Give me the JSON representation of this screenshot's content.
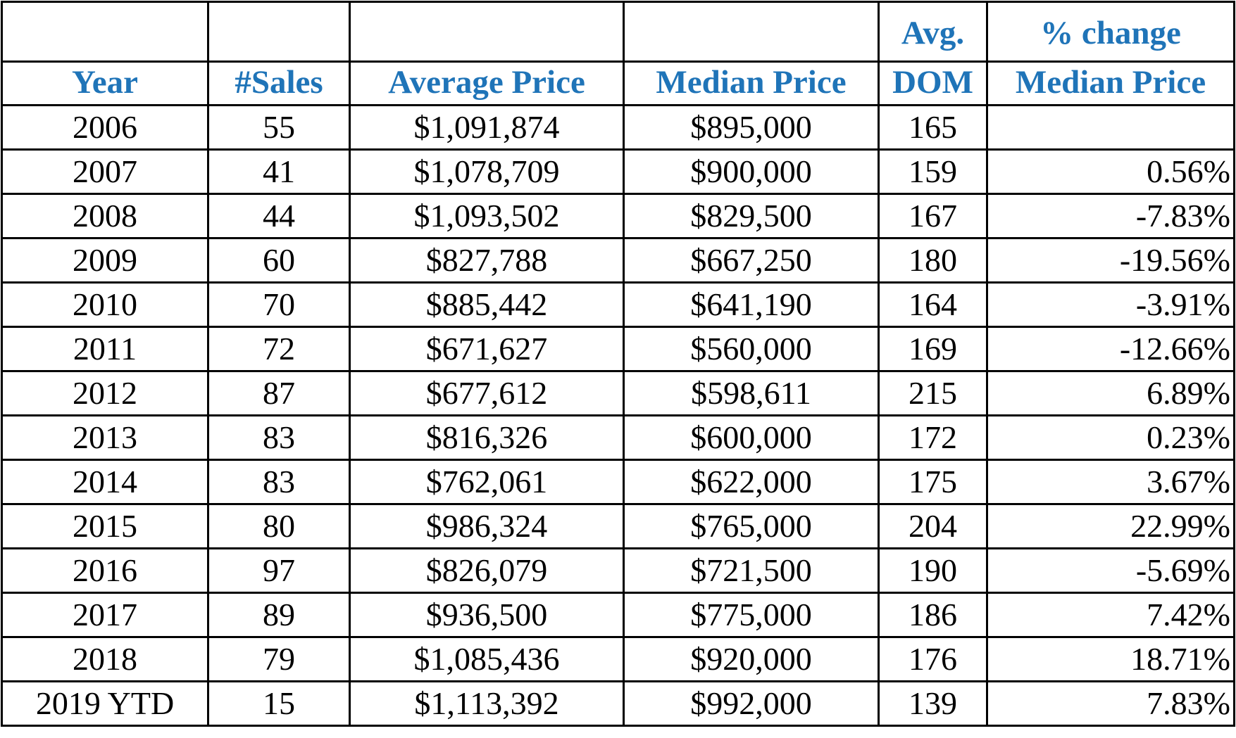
{
  "header": {
    "top": {
      "year": "",
      "sales": "",
      "avg_price": "",
      "median_price": "",
      "dom": "Avg.",
      "pct": "% change"
    },
    "bottom": {
      "year": "Year",
      "sales": "#Sales",
      "avg_price": "Average Price",
      "median_price": "Median Price",
      "dom": "DOM",
      "pct": "Median Price"
    }
  },
  "rows": [
    {
      "year": "2006",
      "sales": "55",
      "avg_price": "$1,091,874",
      "median_price": "$895,000",
      "dom": "165",
      "pct": ""
    },
    {
      "year": "2007",
      "sales": "41",
      "avg_price": "$1,078,709",
      "median_price": "$900,000",
      "dom": "159",
      "pct": "0.56%"
    },
    {
      "year": "2008",
      "sales": "44",
      "avg_price": "$1,093,502",
      "median_price": "$829,500",
      "dom": "167",
      "pct": "-7.83%"
    },
    {
      "year": "2009",
      "sales": "60",
      "avg_price": "$827,788",
      "median_price": "$667,250",
      "dom": "180",
      "pct": "-19.56%"
    },
    {
      "year": "2010",
      "sales": "70",
      "avg_price": "$885,442",
      "median_price": "$641,190",
      "dom": "164",
      "pct": "-3.91%"
    },
    {
      "year": "2011",
      "sales": "72",
      "avg_price": "$671,627",
      "median_price": "$560,000",
      "dom": "169",
      "pct": "-12.66%"
    },
    {
      "year": "2012",
      "sales": "87",
      "avg_price": "$677,612",
      "median_price": "$598,611",
      "dom": "215",
      "pct": "6.89%"
    },
    {
      "year": "2013",
      "sales": "83",
      "avg_price": "$816,326",
      "median_price": "$600,000",
      "dom": "172",
      "pct": "0.23%"
    },
    {
      "year": "2014",
      "sales": "83",
      "avg_price": "$762,061",
      "median_price": "$622,000",
      "dom": "175",
      "pct": "3.67%"
    },
    {
      "year": "2015",
      "sales": "80",
      "avg_price": "$986,324",
      "median_price": "$765,000",
      "dom": "204",
      "pct": "22.99%"
    },
    {
      "year": "2016",
      "sales": "97",
      "avg_price": "$826,079",
      "median_price": "$721,500",
      "dom": "190",
      "pct": "-5.69%"
    },
    {
      "year": "2017",
      "sales": "89",
      "avg_price": "$936,500",
      "median_price": "$775,000",
      "dom": "186",
      "pct": "7.42%"
    },
    {
      "year": "2018",
      "sales": "79",
      "avg_price": "$1,085,436",
      "median_price": "$920,000",
      "dom": "176",
      "pct": "18.71%"
    },
    {
      "year": "2019 YTD",
      "sales": "15",
      "avg_price": "$1,113,392",
      "median_price": "$992,000",
      "dom": "139",
      "pct": "7.83%"
    }
  ],
  "colors": {
    "header_text": "#1F74B8",
    "body_text": "#000000",
    "grid": "#000000"
  }
}
